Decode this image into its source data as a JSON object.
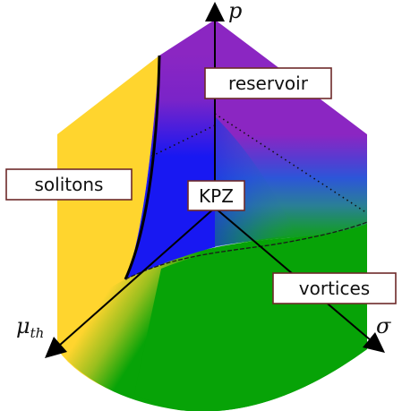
{
  "axes": {
    "p": "p",
    "mu_base": "μ",
    "mu_sub": "th",
    "sigma": "σ"
  },
  "regions": {
    "reservoir": "reservoir",
    "solitons": "solitons",
    "kpz": "KPZ",
    "vortices": "vortices"
  },
  "colors": {
    "reservoir": "#8b26c2",
    "solitons": "#ffd52e",
    "kpz": "#1515f4",
    "vortices": "#07a307",
    "teal": "#2a7f96",
    "box_border": "#6d2a2a",
    "axis": "#000000"
  }
}
